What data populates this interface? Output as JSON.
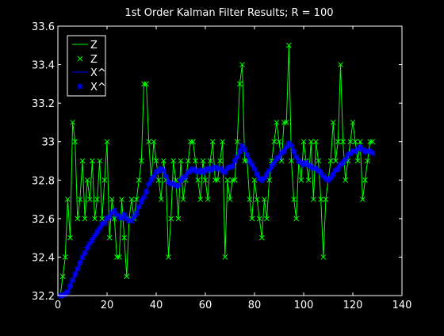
{
  "chart_data": {
    "type": "line",
    "title": "1st Order Kalman Filter Results; R = 100",
    "xlabel": "",
    "ylabel": "",
    "xlim": [
      0,
      140
    ],
    "ylim": [
      32.2,
      33.6
    ],
    "xticks": [
      0,
      20,
      40,
      60,
      80,
      100,
      120,
      140
    ],
    "yticks": [
      32.2,
      32.4,
      32.6,
      32.8,
      33,
      33.2,
      33.4,
      33.6
    ],
    "xtick_labels": [
      "0",
      "20",
      "40",
      "60",
      "80",
      "100",
      "120",
      "140"
    ],
    "ytick_labels": [
      "32.2",
      "32.4",
      "32.6",
      "32.8",
      "33",
      "33.2",
      "33.4",
      "33.6"
    ],
    "grid": false,
    "legend_position": "top-left",
    "legend": [
      {
        "label": "Z",
        "kind": "line",
        "color": "#00ff00"
      },
      {
        "label": "Z",
        "kind": "x-marker",
        "color": "#00ff00"
      },
      {
        "label": "X^",
        "kind": "line",
        "color": "#0000ff"
      },
      {
        "label": "X^",
        "kind": "star-marker",
        "color": "#0000ff"
      }
    ],
    "series": [
      {
        "name": "Z",
        "color": "#00ff00",
        "marker": "x",
        "x": [
          1,
          2,
          3,
          4,
          5,
          6,
          7,
          8,
          9,
          10,
          11,
          12,
          13,
          14,
          15,
          16,
          17,
          18,
          19,
          20,
          21,
          22,
          23,
          24,
          25,
          26,
          27,
          28,
          29,
          30,
          31,
          32,
          33,
          34,
          35,
          36,
          37,
          38,
          39,
          40,
          41,
          42,
          43,
          44,
          45,
          46,
          47,
          48,
          49,
          50,
          51,
          52,
          53,
          54,
          55,
          56,
          57,
          58,
          59,
          60,
          61,
          62,
          63,
          64,
          65,
          66,
          67,
          68,
          69,
          70,
          71,
          72,
          73,
          74,
          75,
          76,
          77,
          78,
          79,
          80,
          81,
          82,
          83,
          84,
          85,
          86,
          87,
          88,
          89,
          90,
          91,
          92,
          93,
          94,
          95,
          96,
          97,
          98,
          99,
          100,
          101,
          102,
          103,
          104,
          105,
          106,
          107,
          108,
          109,
          110,
          111,
          112,
          113,
          114,
          115,
          116,
          117,
          118,
          119,
          120,
          121,
          122,
          123,
          124,
          125,
          126,
          127,
          128
        ],
        "y": [
          32.2,
          32.3,
          32.4,
          32.7,
          32.5,
          33.1,
          33.0,
          32.6,
          32.7,
          32.9,
          32.6,
          32.8,
          32.7,
          32.9,
          32.6,
          32.7,
          32.9,
          32.6,
          32.8,
          33.0,
          32.5,
          32.7,
          32.6,
          32.4,
          32.4,
          32.7,
          32.5,
          32.3,
          32.6,
          32.7,
          32.6,
          32.7,
          32.8,
          32.9,
          33.3,
          33.3,
          33.0,
          32.8,
          33.0,
          32.9,
          32.8,
          32.7,
          32.9,
          32.8,
          32.4,
          32.6,
          32.9,
          32.8,
          32.6,
          32.9,
          32.7,
          32.8,
          32.9,
          33.0,
          33.0,
          32.9,
          32.8,
          32.7,
          32.9,
          32.8,
          32.7,
          32.9,
          33.0,
          32.8,
          32.8,
          32.9,
          33.0,
          32.4,
          32.8,
          32.7,
          32.8,
          32.8,
          33.0,
          33.3,
          33.4,
          32.9,
          32.9,
          32.7,
          32.6,
          32.8,
          32.7,
          32.6,
          32.5,
          32.7,
          32.6,
          32.8,
          32.9,
          33.0,
          33.1,
          33.0,
          32.9,
          33.1,
          33.1,
          33.5,
          32.9,
          32.7,
          32.6,
          32.9,
          32.8,
          33.0,
          32.9,
          32.8,
          33.0,
          32.7,
          33.0,
          32.9,
          32.7,
          32.4,
          32.7,
          32.8,
          32.9,
          33.1,
          32.9,
          33.0,
          33.4,
          33.0,
          32.8,
          32.9,
          33.0,
          33.1,
          33.0,
          32.9,
          33.0,
          32.7,
          32.8,
          32.9,
          33.0,
          33.0
        ]
      },
      {
        "name": "X^",
        "color": "#0000ff",
        "marker": "*",
        "x": [
          1,
          2,
          3,
          4,
          5,
          6,
          7,
          8,
          9,
          10,
          11,
          12,
          13,
          14,
          15,
          16,
          17,
          18,
          19,
          20,
          21,
          22,
          23,
          24,
          25,
          26,
          27,
          28,
          29,
          30,
          31,
          32,
          33,
          34,
          35,
          36,
          37,
          38,
          39,
          40,
          41,
          42,
          43,
          44,
          45,
          46,
          47,
          48,
          49,
          50,
          51,
          52,
          53,
          54,
          55,
          56,
          57,
          58,
          59,
          60,
          61,
          62,
          63,
          64,
          65,
          66,
          67,
          68,
          69,
          70,
          71,
          72,
          73,
          74,
          75,
          76,
          77,
          78,
          79,
          80,
          81,
          82,
          83,
          84,
          85,
          86,
          87,
          88,
          89,
          90,
          91,
          92,
          93,
          94,
          95,
          96,
          97,
          98,
          99,
          100,
          101,
          102,
          103,
          104,
          105,
          106,
          107,
          108,
          109,
          110,
          111,
          112,
          113,
          114,
          115,
          116,
          117,
          118,
          119,
          120,
          121,
          122,
          123,
          124,
          125,
          126,
          127,
          128
        ],
        "y": [
          32.2,
          32.2,
          32.21,
          32.22,
          32.25,
          32.28,
          32.31,
          32.34,
          32.37,
          32.4,
          32.42,
          32.45,
          32.47,
          32.49,
          32.51,
          32.53,
          32.55,
          32.57,
          32.58,
          32.6,
          32.61,
          32.63,
          32.64,
          32.62,
          32.61,
          32.6,
          32.62,
          32.6,
          32.59,
          32.59,
          32.61,
          32.63,
          32.66,
          32.69,
          32.71,
          32.74,
          32.78,
          32.8,
          32.82,
          32.84,
          32.85,
          32.86,
          32.85,
          32.82,
          32.79,
          32.78,
          32.78,
          32.77,
          32.77,
          32.8,
          32.81,
          32.82,
          32.84,
          32.85,
          32.86,
          32.85,
          32.84,
          32.85,
          32.84,
          32.85,
          32.86,
          32.85,
          32.86,
          32.87,
          32.86,
          32.86,
          32.85,
          32.84,
          32.86,
          32.87,
          32.87,
          32.9,
          32.92,
          32.95,
          32.98,
          32.96,
          32.93,
          32.9,
          32.88,
          32.86,
          32.83,
          32.81,
          32.8,
          32.81,
          32.83,
          32.85,
          32.87,
          32.89,
          32.91,
          32.92,
          32.94,
          32.95,
          32.97,
          32.99,
          32.98,
          32.95,
          32.92,
          32.9,
          32.89,
          32.88,
          32.89,
          32.88,
          32.87,
          32.86,
          32.86,
          32.85,
          32.84,
          32.82,
          32.81,
          32.8,
          32.81,
          32.83,
          32.85,
          32.86,
          32.88,
          32.89,
          32.91,
          32.93,
          32.94,
          32.95,
          32.95,
          32.96,
          32.97,
          32.96,
          32.95,
          32.95,
          32.95,
          32.94
        ]
      }
    ]
  }
}
